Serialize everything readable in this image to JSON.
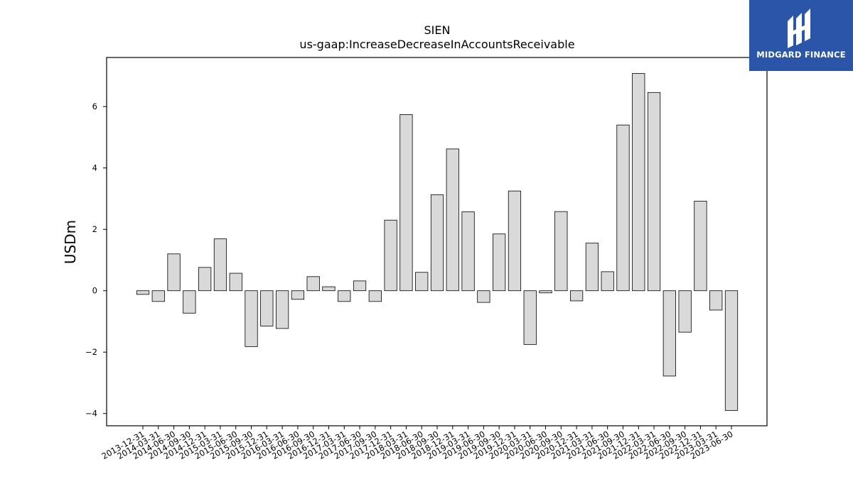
{
  "brand": {
    "name": "MIDGARD FINANCE"
  },
  "colors": {
    "bar_fill": "#d9d9d9",
    "bar_edge": "#000000",
    "logo_bg": "#2b55a8"
  },
  "chart_data": {
    "type": "bar",
    "title": "SIEN",
    "subtitle": "us-gaap:IncreaseDecreaseInAccountsReceivable",
    "xlabel": "",
    "ylabel": "USDm",
    "ylim": [
      -4.4,
      7.6
    ],
    "yticks": [
      -4,
      -2,
      0,
      2,
      4,
      6
    ],
    "grid": false,
    "categories": [
      "2013-12-31",
      "2014-03-31",
      "2014-06-30",
      "2014-09-30",
      "2014-12-31",
      "2015-03-31",
      "2015-06-30",
      "2015-09-30",
      "2015-12-31",
      "2016-03-31",
      "2016-06-30",
      "2016-09-30",
      "2016-12-31",
      "2017-03-31",
      "2017-06-30",
      "2017-09-30",
      "2017-12-31",
      "2018-03-31",
      "2018-06-30",
      "2018-09-30",
      "2018-12-31",
      "2019-03-31",
      "2019-06-30",
      "2019-09-30",
      "2019-12-31",
      "2020-03-31",
      "2020-06-30",
      "2020-09-30",
      "2020-12-31",
      "2021-03-31",
      "2021-06-30",
      "2021-09-30",
      "2021-12-31",
      "2022-03-31",
      "2022-06-30",
      "2022-09-30",
      "2022-12-31",
      "2023-03-31",
      "2023-06-30"
    ],
    "values": [
      -0.12,
      -0.35,
      1.2,
      -0.73,
      0.76,
      1.69,
      0.57,
      -1.82,
      -1.15,
      -1.23,
      -0.28,
      0.46,
      0.13,
      -0.35,
      0.32,
      -0.35,
      2.3,
      5.74,
      0.6,
      3.13,
      4.62,
      2.57,
      -0.38,
      1.85,
      3.25,
      -1.75,
      -0.07,
      2.58,
      -0.33,
      1.55,
      0.62,
      5.4,
      7.08,
      6.46,
      -2.78,
      -1.35,
      2.92,
      -0.63,
      -3.9
    ]
  }
}
